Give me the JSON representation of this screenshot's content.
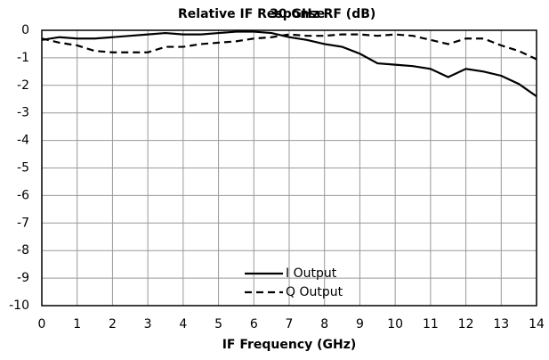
{
  "chart_data": {
    "type": "line",
    "title": "Relative IF Response",
    "subtitle": "30 GHz RF (dB)",
    "x_label": "IF Frequency (GHz)",
    "x": [
      0,
      0.5,
      1,
      1.5,
      2,
      2.5,
      3,
      3.5,
      4,
      4.5,
      5,
      5.5,
      6,
      6.5,
      7,
      7.5,
      8,
      8.5,
      9,
      9.5,
      10,
      10.5,
      11,
      11.5,
      12,
      12.5,
      13,
      13.5,
      14
    ],
    "series": [
      {
        "name": "I Output",
        "color": "#000000",
        "style": "solid",
        "values": [
          -0.35,
          -0.25,
          -0.3,
          -0.3,
          -0.25,
          -0.2,
          -0.15,
          -0.1,
          -0.15,
          -0.15,
          -0.1,
          -0.05,
          -0.05,
          -0.1,
          -0.25,
          -0.35,
          -0.5,
          -0.6,
          -0.85,
          -1.2,
          -1.25,
          -1.3,
          -1.4,
          -1.7,
          -1.4,
          -1.5,
          -1.65,
          -1.95,
          -2.4
        ]
      },
      {
        "name": "Q Output",
        "color": "#000000",
        "style": "dashed",
        "values": [
          -0.3,
          -0.45,
          -0.55,
          -0.75,
          -0.8,
          -0.8,
          -0.8,
          -0.6,
          -0.6,
          -0.5,
          -0.45,
          -0.4,
          -0.3,
          -0.25,
          -0.15,
          -0.2,
          -0.2,
          -0.15,
          -0.15,
          -0.2,
          -0.15,
          -0.2,
          -0.35,
          -0.5,
          -0.3,
          -0.3,
          -0.55,
          -0.75,
          -1.05
        ]
      }
    ],
    "xlim": [
      0,
      14
    ],
    "xticks": [
      0,
      1,
      2,
      3,
      4,
      5,
      6,
      7,
      8,
      9,
      10,
      11,
      12,
      13,
      14
    ],
    "ylim": [
      -10,
      0
    ],
    "yticks": [
      0,
      -1,
      -2,
      -3,
      -4,
      -5,
      -6,
      -7,
      -8,
      -9,
      -10
    ],
    "grid": true,
    "legend": "bottom"
  }
}
